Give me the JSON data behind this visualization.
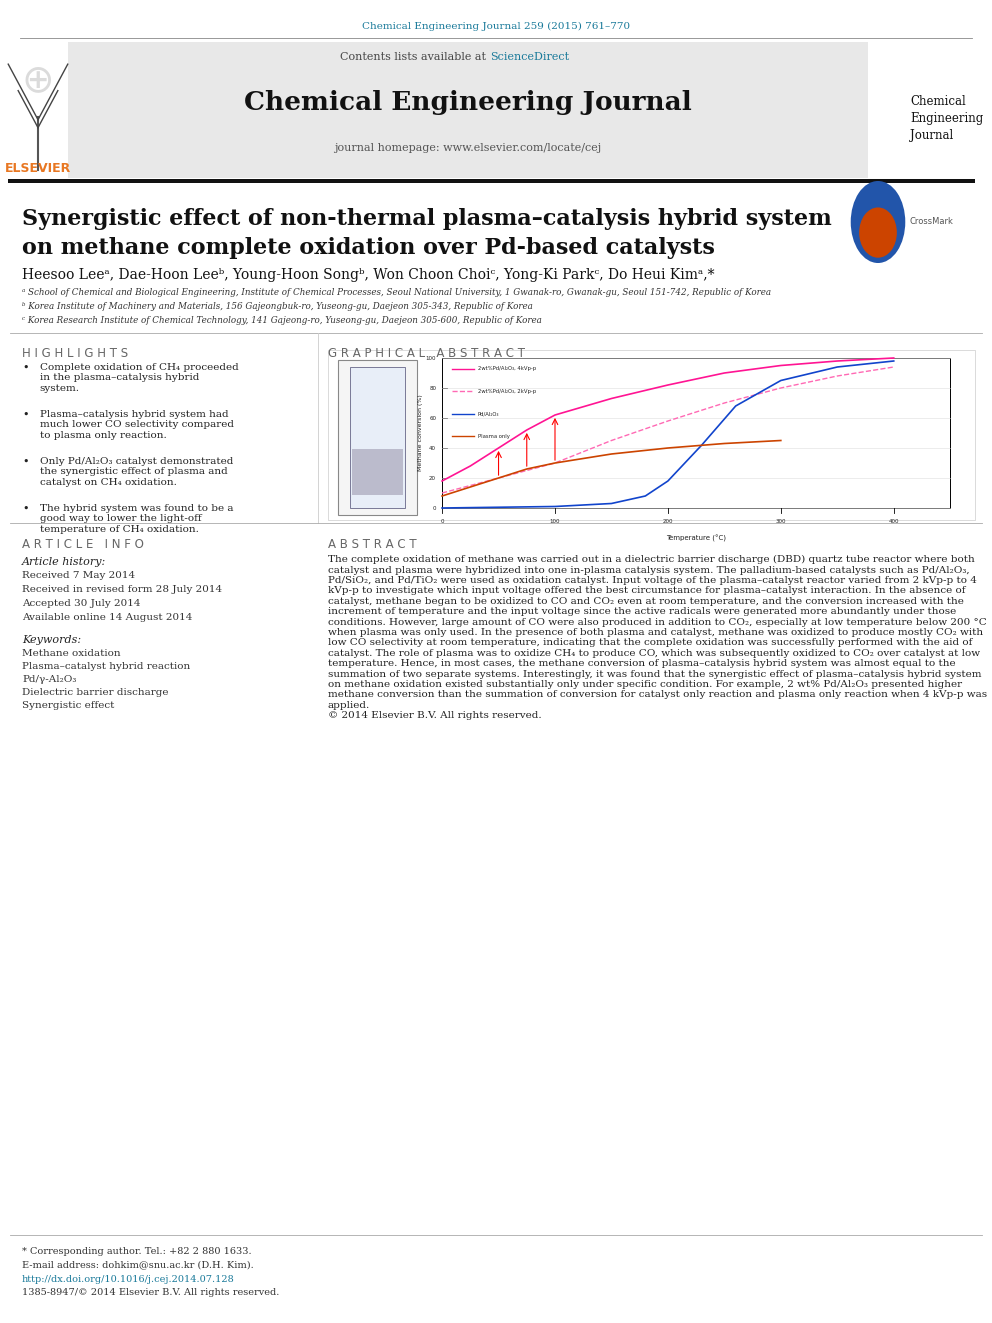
{
  "page_width": 9.92,
  "page_height": 13.23,
  "bg_color": "#ffffff",
  "top_citation": "Chemical Engineering Journal 259 (2015) 761–770",
  "top_citation_color": "#1a7a9a",
  "journal_name": "Chemical Engineering Journal",
  "journal_homepage": "journal homepage: www.elsevier.com/locate/cej",
  "contents_text": "Contents lists available at ",
  "sciencedirect_text": "ScienceDirect",
  "sciencedirect_color": "#1a7a9a",
  "elsevier_color": "#e87722",
  "header_bg": "#e8e8e8",
  "article_title_line1": "Synergistic effect of non-thermal plasma–catalysis hybrid system",
  "article_title_line2": "on methane complete oxidation over Pd-based catalysts",
  "authors": "Heesoo Leeᵃ, Dae-Hoon Leeᵇ, Young-Hoon Songᵇ, Won Choon Choiᶜ, Yong-Ki Parkᶜ, Do Heui Kimᵃ,*",
  "affil_a": "ᵃ School of Chemical and Biological Engineering, Institute of Chemical Processes, Seoul National University, 1 Gwanak-ro, Gwanak-gu, Seoul 151-742, Republic of Korea",
  "affil_b": "ᵇ Korea Institute of Machinery and Materials, 156 Gajeongbuk-ro, Yuseong-gu, Daejeon 305-343, Republic of Korea",
  "affil_c": "ᶜ Korea Research Institute of Chemical Technology, 141 Gajeong-ro, Yuseong-gu, Daejeon 305-600, Republic of Korea",
  "highlights_title": "H I G H L I G H T S",
  "highlights": [
    "Complete oxidation of CH₄ proceeded\nin the plasma–catalysis hybrid\nsystem.",
    "Plasma–catalysis hybrid system had\nmuch lower CO selectivity compared\nto plasma only reaction.",
    "Only Pd/Al₂O₃ catalyst demonstrated\nthe synergistic effect of plasma and\ncatalyst on CH₄ oxidation.",
    "The hybrid system was found to be a\ngood way to lower the light-off\ntemperature of CH₄ oxidation."
  ],
  "graphical_abstract_title": "G R A P H I C A L   A B S T R A C T",
  "article_info_title": "A R T I C L E   I N F O",
  "article_history_title": "Article history:",
  "received": "Received 7 May 2014",
  "revised": "Received in revised form 28 July 2014",
  "accepted": "Accepted 30 July 2014",
  "available": "Available online 14 August 2014",
  "keywords_title": "Keywords:",
  "keywords": [
    "Methane oxidation",
    "Plasma–catalyst hybrid reaction",
    "Pd/γ-Al₂O₃",
    "Dielectric barrier discharge",
    "Synergistic effect"
  ],
  "abstract_title": "A B S T R A C T",
  "abstract_text": "The complete oxidation of methane was carried out in a dielectric barrier discharge (DBD) quartz tube reactor where both catalyst and plasma were hybridized into one in-plasma catalysis system. The palladium-based catalysts such as Pd/Al₂O₃, Pd/SiO₂, and Pd/TiO₂ were used as oxidation catalyst. Input voltage of the plasma–catalyst reactor varied from 2 kVp-p to 4 kVp-p to investigate which input voltage offered the best circumstance for plasma–catalyst interaction. In the absence of catalyst, methane began to be oxidized to CO and CO₂ even at room temperature, and the conversion increased with the increment of temperature and the input voltage since the active radicals were generated more abundantly under those conditions. However, large amount of CO were also produced in addition to CO₂, especially at low temperature below 200 °C when plasma was only used. In the presence of both plasma and catalyst, methane was oxidized to produce mostly CO₂ with low CO selectivity at room temperature, indicating that the complete oxidation was successfully performed with the aid of catalyst. The role of plasma was to oxidize CH₄ to produce CO, which was subsequently oxidized to CO₂ over catalyst at low temperature. Hence, in most cases, the methane conversion of plasma–catalysis hybrid system was almost equal to the summation of two separate systems. Interestingly, it was found that the synergistic effect of plasma–catalysis hybrid system on methane oxidation existed substantially only under specific condition. For example, 2 wt% Pd/Al₂O₃ presented higher methane conversion than the summation of conversion for catalyst only reaction and plasma only reaction when 4 kVp-p was applied.",
  "abstract_copyright": "© 2014 Elsevier B.V. All rights reserved.",
  "footer_corresponding": "* Corresponding author. Tel.: +82 2 880 1633.",
  "footer_email": "E-mail address: dohkim@snu.ac.kr (D.H. Kim).",
  "footer_doi": "http://dx.doi.org/10.1016/j.cej.2014.07.128",
  "footer_issn": "1385-8947/© 2014 Elsevier B.V. All rights reserved.",
  "footer_doi_color": "#1a7a9a"
}
